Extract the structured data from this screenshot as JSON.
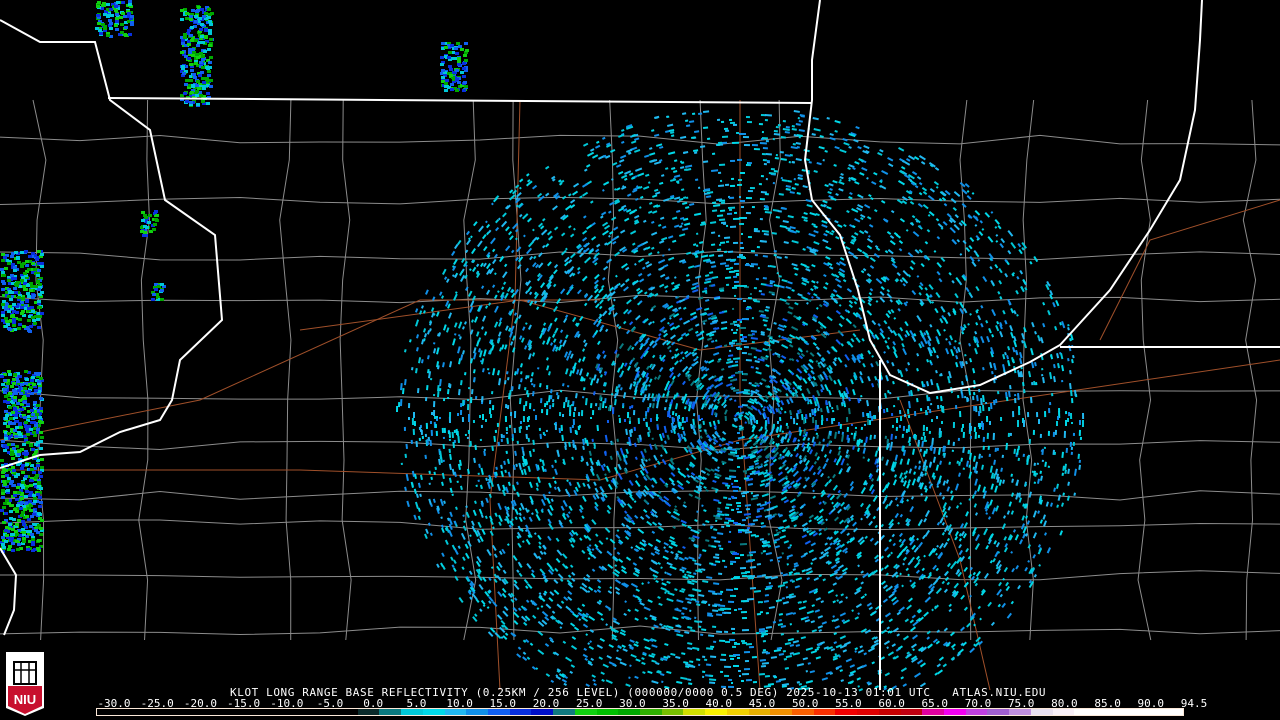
{
  "product": {
    "title": "KLOT LONG RANGE BASE REFLECTIVITY (0.25KM / 256 LEVEL) (000000/0000 0.5 DEG) 2025-10-13 01:01 UTC   ATLAS.NIU.EDU",
    "station": "KLOT",
    "timestamp": "2025-10-13 01:01 UTC",
    "source": "ATLAS.NIU.EDU"
  },
  "logo": {
    "text": "NIU",
    "colors": {
      "red": "#c8102e",
      "white": "#ffffff"
    }
  },
  "legend": {
    "labels": [
      "-30.0",
      "-25.0",
      "-20.0",
      "-15.0",
      "-10.0",
      "-5.0",
      "0.0",
      "5.0",
      "10.0",
      "15.0",
      "20.0",
      "25.0",
      "30.0",
      "35.0",
      "40.0",
      "45.0",
      "50.0",
      "55.0",
      "60.0",
      "65.0",
      "70.0",
      "75.0",
      "80.0",
      "85.0",
      "90.0",
      "94.5"
    ],
    "unit_range": [
      -30.0,
      94.5
    ],
    "colors": [
      "#000000",
      "#000000",
      "#000000",
      "#000000",
      "#000000",
      "#000000",
      "#000000",
      "#000000",
      "#000000",
      "#000000",
      "#000000",
      "#000000",
      "#0a2a2a",
      "#0a7a80",
      "#00c8d8",
      "#00d8e8",
      "#20b8f0",
      "#1090e8",
      "#1060f0",
      "#0830e0",
      "#0010c8",
      "#107a80",
      "#10d010",
      "#00c000",
      "#00a800",
      "#30b000",
      "#78c000",
      "#d0e000",
      "#f8f000",
      "#f0d000",
      "#e8b000",
      "#f09000",
      "#f86000",
      "#f83000",
      "#f00000",
      "#e00000",
      "#c80000",
      "#c00010",
      "#e000a0",
      "#f000f0",
      "#c040e0",
      "#a060d0",
      "#c090e0",
      "#e8e0f0",
      "#f8f0f8",
      "#ffffff",
      "#ffffff",
      "#ffffff",
      "#ffffff",
      "#ffffff"
    ],
    "line_colors": {
      "state_border": "#ffffff",
      "county_border": "#8c8c8c",
      "highway": "#a0502a"
    }
  }
}
